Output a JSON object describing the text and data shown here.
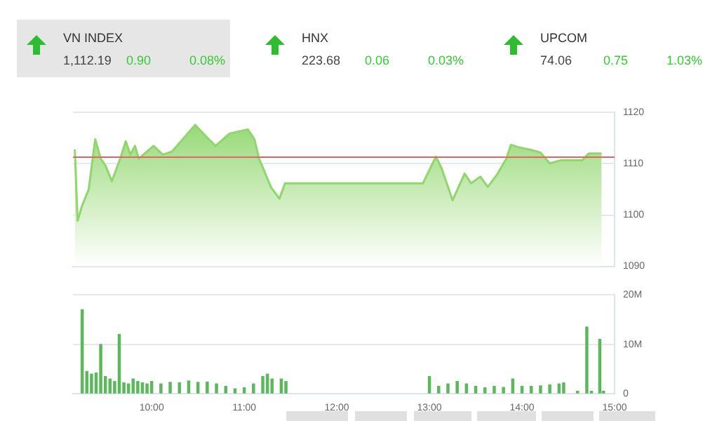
{
  "chart_data": [
    {
      "type": "other",
      "annotations": [
        "VN INDEX",
        "1,112.19",
        "0.90",
        "0.08%",
        "HNX",
        "223.68",
        "0.06",
        "0.03%",
        "UPCOM",
        "74.06",
        "0.75",
        "1.03%"
      ]
    },
    {
      "type": "area",
      "x": [
        9.17,
        9.2,
        9.25,
        9.32,
        9.39,
        9.45,
        9.5,
        9.57,
        9.67,
        9.72,
        9.77,
        9.82,
        9.86,
        10.02,
        10.12,
        10.22,
        10.47,
        10.59,
        10.69,
        10.84,
        11.04,
        11.11,
        11.16,
        11.29,
        11.38,
        11.44,
        12.93,
        13.07,
        13.13,
        13.25,
        13.38,
        13.45,
        13.55,
        13.63,
        13.73,
        13.83,
        13.88,
        13.95,
        14.1,
        14.2,
        14.3,
        14.42,
        14.65,
        14.72,
        14.86
      ],
      "series": [
        {
          "color": "#8fd66c",
          "values": [
            1112.8,
            1098.9,
            1101.9,
            1105,
            1114.8,
            1111,
            1109.7,
            1106.6,
            1111.5,
            1114.4,
            1111.8,
            1113.5,
            1111,
            1113.5,
            1111.8,
            1112.4,
            1117.6,
            1115.3,
            1113.5,
            1115.9,
            1116.7,
            1114.8,
            1111,
            1105.4,
            1103.2,
            1106.2,
            1106.2,
            1111.4,
            1109.2,
            1102.9,
            1108.1,
            1106.2,
            1107.5,
            1105.5,
            1107.9,
            1111,
            1113.7,
            1113.3,
            1112.7,
            1112.2,
            1110.1,
            1110.7,
            1110.7,
            1112,
            1112
          ]
        }
      ],
      "xlim": [
        9.15,
        15
      ],
      "ylim": [
        1090,
        1120
      ],
      "yticks": [
        1090,
        1100,
        1110,
        1120
      ],
      "grid": "y",
      "tick_labels": "y",
      "ref_lines": [
        {
          "axis": "y",
          "value": 1111.29,
          "color": "#e06666"
        }
      ]
    },
    {
      "type": "bar",
      "x": [
        9.25,
        9.3,
        9.35,
        9.4,
        9.45,
        9.5,
        9.55,
        9.6,
        9.65,
        9.7,
        9.75,
        9.8,
        9.85,
        9.9,
        9.95,
        10,
        10.1,
        10.2,
        10.3,
        10.4,
        10.5,
        10.6,
        10.7,
        10.8,
        10.9,
        11,
        11.1,
        11.2,
        11.25,
        11.3,
        11.4,
        11.45,
        13,
        13.1,
        13.2,
        13.3,
        13.4,
        13.5,
        13.6,
        13.7,
        13.8,
        13.9,
        14,
        14.1,
        14.2,
        14.3,
        14.4,
        14.45,
        14.6,
        14.7,
        14.75,
        14.84,
        14.88
      ],
      "series": [
        {
          "color": "#5cb85c",
          "values": [
            17,
            4.5,
            4,
            4.2,
            10,
            3.5,
            3,
            2.5,
            12,
            2.2,
            2,
            3,
            2.5,
            2.2,
            2,
            2.5,
            2,
            2.3,
            2.2,
            2.6,
            2.3,
            2.4,
            2,
            1.5,
            1,
            1.2,
            2,
            3.5,
            4,
            3,
            3,
            2.5,
            3.5,
            1.5,
            2,
            2.5,
            2,
            1.5,
            1.2,
            1.5,
            1.3,
            3,
            1.5,
            1.5,
            1.6,
            1.8,
            2,
            2.2,
            0.5,
            13.5,
            0.5,
            11,
            0.5
          ]
        }
      ],
      "xlim": [
        9.15,
        15
      ],
      "xticks": [
        {
          "value": 10,
          "label": "10:00"
        },
        {
          "value": 11,
          "label": "11:00"
        },
        {
          "value": 12,
          "label": "12:00"
        },
        {
          "value": 13,
          "label": "13:00"
        },
        {
          "value": 14,
          "label": "14:00"
        },
        {
          "value": 15,
          "label": "15:00"
        }
      ],
      "ylim": [
        0,
        20
      ],
      "yticks": [
        0,
        {
          "value": 10,
          "label": "10M"
        },
        {
          "value": 20,
          "label": "20M"
        }
      ],
      "grid": "y"
    }
  ]
}
